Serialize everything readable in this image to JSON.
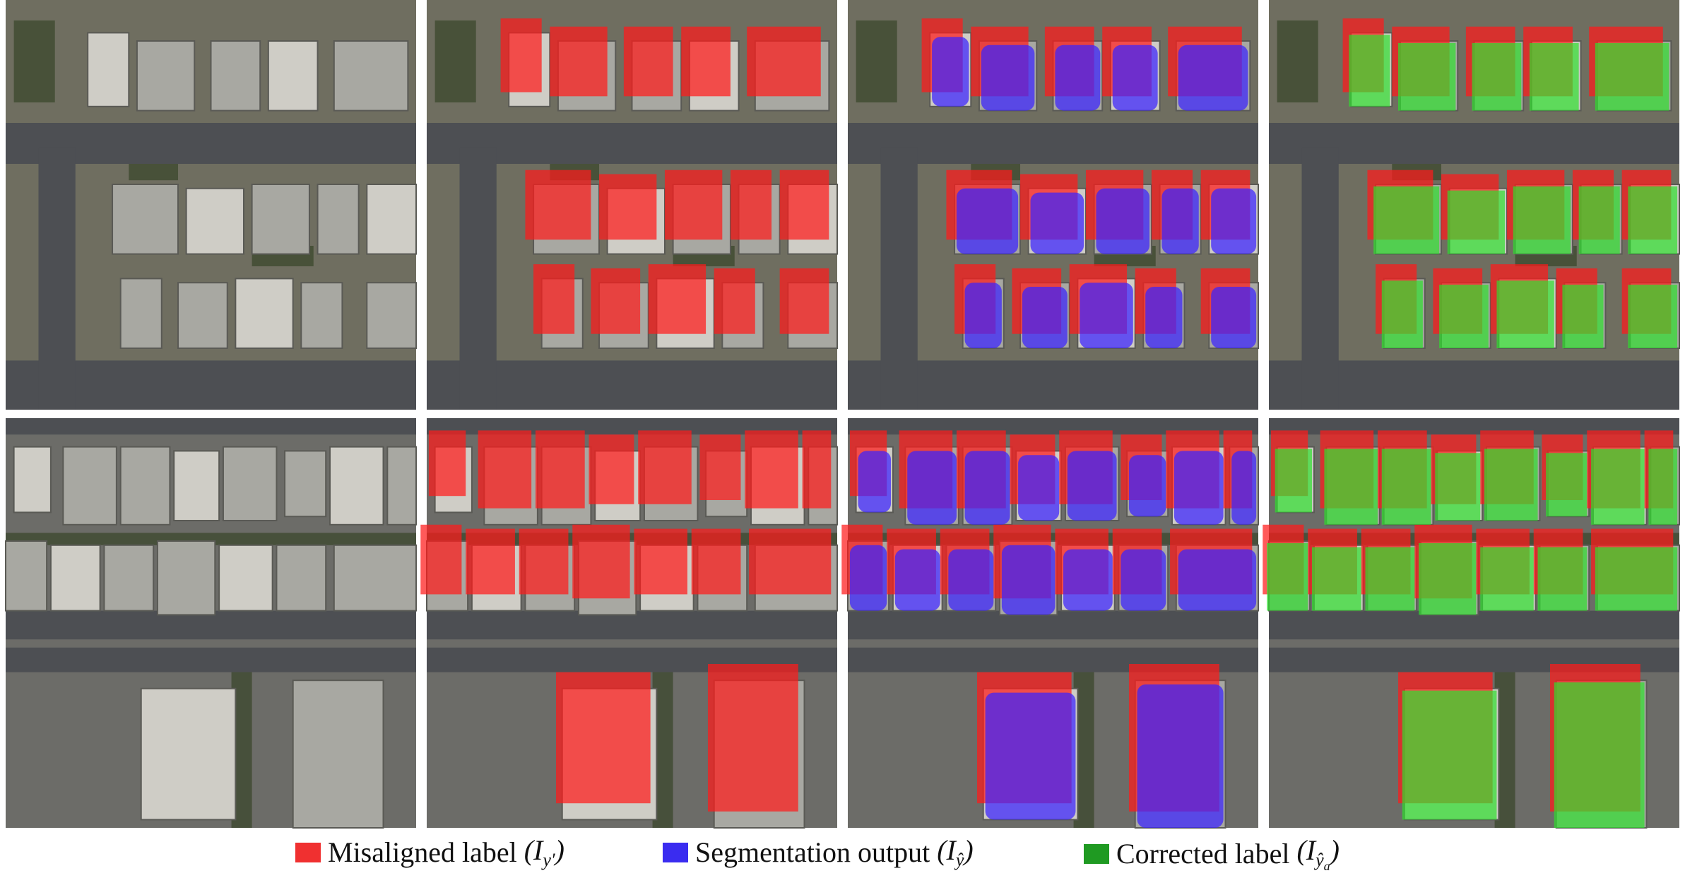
{
  "legend": [
    {
      "label": "Misaligned label",
      "symbol": "(I",
      "subscript": "y′",
      "close": ")"
    },
    {
      "label": "Segmentation output",
      "symbol": "(I",
      "subscript": "ŷ",
      "close": ")"
    },
    {
      "label": "Corrected label",
      "symbol": "(I",
      "subscript": "ŷ",
      "subsubscript": "a",
      "close": ")"
    }
  ]
}
